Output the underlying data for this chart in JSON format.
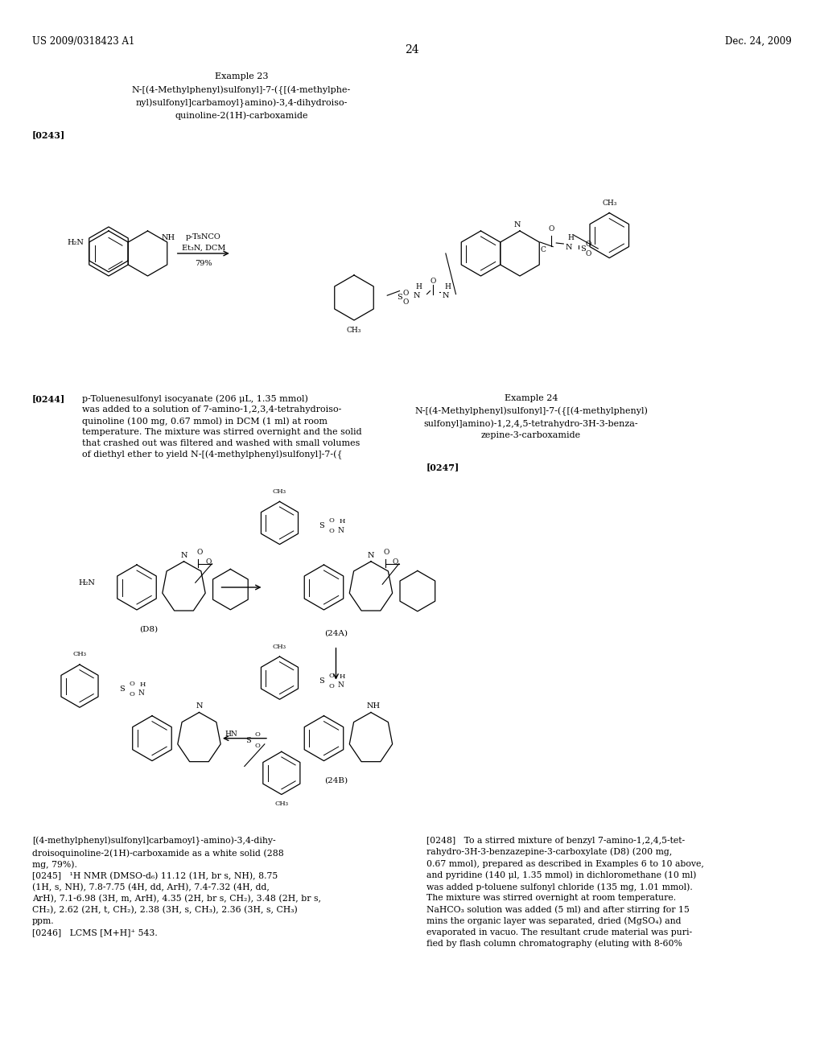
{
  "page_width": 10.24,
  "page_height": 13.2,
  "bg_color": "#ffffff",
  "header_left": "US 2009/0318423 A1",
  "header_right": "Dec. 24, 2009",
  "page_number": "24",
  "example23_title": "Example 23",
  "example23_name": "N-[(4-Methylphenyl)sulfonyl]-7-({[(4-methylphe-\nnyl)sulfonyl]carbamoyl}amino)-3,4-dihydroiso-\nquinoline-2(1H)-carboxamide",
  "para0243": "[0243]",
  "reagent1": "p-TsNCO\nEt₃N, DCM\n――――――\n79%",
  "reagent1_line1": "p-TsNCO",
  "reagent1_line2": "Et₃N, DCM",
  "reagent1_pct": "79%",
  "para0244": "[0244]",
  "para0244_body": "p-Toluenesulfonyl isocyanate (206 μL, 1.35 mmol)\nwas added to a solution of 7-amino-1,2,3,4-tetrahydroiso-\nquinoline (100 mg, 0.67 mmol) in DCM (1 ml) at room\ntemperature. The mixture was stirred overnight and the solid\nthat crashed out was filtered and washed with small volumes\nof diethyl ether to yield N-[(4-methylphenyl)sulfonyl]-7-({",
  "example24_title": "Example 24",
  "example24_name": "N-[(4-Methylphenyl)sulfonyl]-7-({[(4-methylphenyl)\nsulfonyl]amino)-1,2,4,5-tetrahydro-3H-3-benza-\nzepine-3-carboxamide",
  "para0247": "[0247]",
  "label_d8": "(D8)",
  "label_24a": "(24A)",
  "label_24b": "(24B)",
  "para_bot_left_1": "[(4-methylphenyl)sulfonyl]carbamoyl}-amino)-3,4-dihy-",
  "para_bot_left_2": "droisoquinoline-2(1H)-carboxamide as a white solid (288",
  "para_bot_left_3": "mg, 79%).",
  "para_bot_left_4": "[0245]   ¹H NMR (DMSO-d₆) 11.12 (1H, br s, NH), 8.75",
  "para_bot_left_5": "(1H, s, NH), 7.8-7.75 (4H, dd, ArH), 7.4-7.32 (4H, dd,",
  "para_bot_left_6": "ArH), 7.1-6.98 (3H, m, ArH), 4.35 (2H, br s, CH₂), 3.48 (2H, br s,",
  "para_bot_left_7": "CH₂), 2.62 (2H, t, CH₂), 2.38 (3H, s, CH₃), 2.36 (3H, s, CH₃)",
  "para_bot_left_8": "ppm.",
  "para_bot_left_9": "[0246]   LCMS [M+H]⁺ 543.",
  "para_bot_right_1": "[0248]   To a stirred mixture of benzyl 7-amino-1,2,4,5-tet-",
  "para_bot_right_2": "rahydro-3H-3-benzazepine-3-carboxylate (D8) (200 mg,",
  "para_bot_right_3": "0.67 mmol), prepared as described in Examples 6 to 10 above,",
  "para_bot_right_4": "and pyridine (140 μl, 1.35 mmol) in dichloromethane (10 ml)",
  "para_bot_right_5": "was added p-toluene sulfonyl chloride (135 mg, 1.01 mmol).",
  "para_bot_right_6": "The mixture was stirred overnight at room temperature.",
  "para_bot_right_7": "NaHCO₃ solution was added (5 ml) and after stirring for 15",
  "para_bot_right_8": "mins the organic layer was separated, dried (MgSO₄) and",
  "para_bot_right_9": "evaporated in vacuo. The resultant crude material was puri-",
  "para_bot_right_10": "fied by flash column chromatography (eluting with 8-60%"
}
